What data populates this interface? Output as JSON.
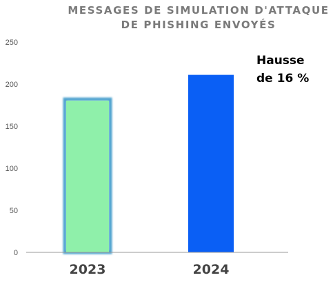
{
  "chart_data": {
    "type": "bar",
    "title_lines": [
      "MESSAGES DE SIMULATION D'ATTAQUE",
      "DE PHISHING ENVOYÉS"
    ],
    "categories": [
      "2023",
      "2024"
    ],
    "values": [
      182,
      211
    ],
    "colors": [
      "#8ff0aa",
      "#0a5ff5"
    ],
    "bar_edge_color": "#4fa3cf",
    "ylim": [
      0,
      250
    ],
    "yticks": [
      "0",
      "50",
      "100",
      "150",
      "200",
      "250"
    ],
    "grid": false,
    "annotation_lines": [
      "Hausse",
      "de 16 %"
    ]
  }
}
